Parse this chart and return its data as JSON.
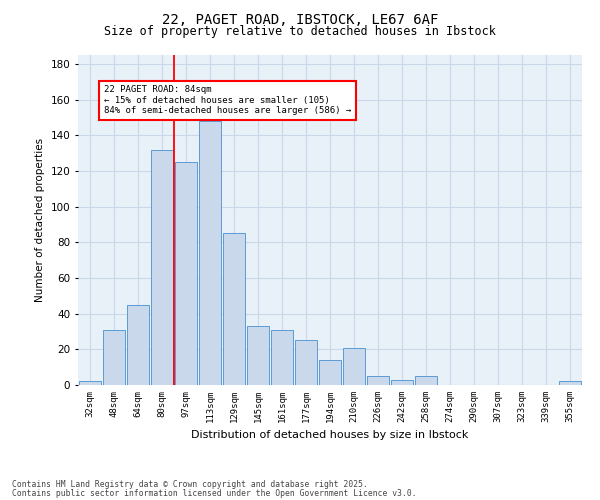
{
  "title_line1": "22, PAGET ROAD, IBSTOCK, LE67 6AF",
  "title_line2": "Size of property relative to detached houses in Ibstock",
  "xlabel": "Distribution of detached houses by size in Ibstock",
  "ylabel": "Number of detached properties",
  "bar_color": "#c9d9eb",
  "bar_edge_color": "#5b9bd5",
  "background_color": "#ffffff",
  "plot_bg_color": "#e8f0f8",
  "grid_color": "#c8d8e8",
  "categories": [
    "32sqm",
    "48sqm",
    "64sqm",
    "80sqm",
    "97sqm",
    "113sqm",
    "129sqm",
    "145sqm",
    "161sqm",
    "177sqm",
    "194sqm",
    "210sqm",
    "226sqm",
    "242sqm",
    "258sqm",
    "274sqm",
    "290sqm",
    "307sqm",
    "323sqm",
    "339sqm",
    "355sqm"
  ],
  "values": [
    2,
    31,
    45,
    132,
    125,
    148,
    85,
    33,
    31,
    25,
    14,
    21,
    5,
    3,
    5,
    0,
    0,
    0,
    0,
    0,
    2
  ],
  "red_line_x": 3.5,
  "annotation_line1": "22 PAGET ROAD: 84sqm",
  "annotation_line2": "← 15% of detached houses are smaller (105)",
  "annotation_line3": "84% of semi-detached houses are larger (586) →",
  "ylim": [
    0,
    185
  ],
  "yticks": [
    0,
    20,
    40,
    60,
    80,
    100,
    120,
    140,
    160,
    180
  ],
  "footer_line1": "Contains HM Land Registry data © Crown copyright and database right 2025.",
  "footer_line2": "Contains public sector information licensed under the Open Government Licence v3.0."
}
